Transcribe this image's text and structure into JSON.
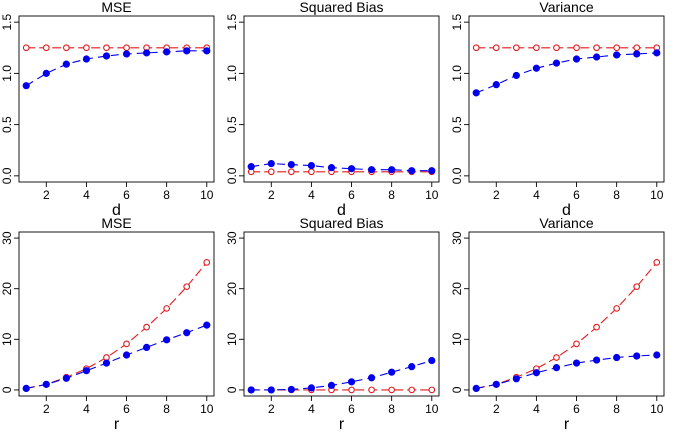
{
  "chart_data": [
    {
      "type": "line",
      "title": "MSE",
      "xlabel": "d",
      "ylabel": "",
      "xlim": [
        1,
        10
      ],
      "ylim": [
        0,
        1.5
      ],
      "xticks": [
        "2",
        "4",
        "6",
        "8",
        "10"
      ],
      "yticks": [
        "0.0",
        "0.5",
        "1.0",
        "1.5"
      ],
      "grid": false,
      "x": [
        1,
        2,
        3,
        4,
        5,
        6,
        7,
        8,
        9,
        10
      ],
      "series": [
        {
          "color": "#e41a1c",
          "style": "open-circle",
          "values": [
            1.25,
            1.25,
            1.25,
            1.25,
            1.25,
            1.25,
            1.25,
            1.25,
            1.25,
            1.25
          ]
        },
        {
          "color": "#0000ee",
          "style": "filled-circle",
          "values": [
            0.88,
            1.0,
            1.09,
            1.14,
            1.17,
            1.19,
            1.2,
            1.21,
            1.22,
            1.22
          ]
        }
      ]
    },
    {
      "type": "line",
      "title": "Squared Bias",
      "xlabel": "d",
      "ylabel": "",
      "xlim": [
        1,
        10
      ],
      "ylim": [
        0,
        1.5
      ],
      "xticks": [
        "2",
        "4",
        "6",
        "8",
        "10"
      ],
      "yticks": [
        "0.0",
        "0.5",
        "1.0",
        "1.5"
      ],
      "grid": false,
      "x": [
        1,
        2,
        3,
        4,
        5,
        6,
        7,
        8,
        9,
        10
      ],
      "series": [
        {
          "color": "#e41a1c",
          "style": "open-circle",
          "values": [
            0.04,
            0.04,
            0.04,
            0.04,
            0.04,
            0.04,
            0.04,
            0.04,
            0.04,
            0.04
          ]
        },
        {
          "color": "#0000ee",
          "style": "filled-circle",
          "values": [
            0.09,
            0.12,
            0.11,
            0.1,
            0.08,
            0.07,
            0.06,
            0.06,
            0.05,
            0.05
          ]
        }
      ]
    },
    {
      "type": "line",
      "title": "Variance",
      "xlabel": "d",
      "ylabel": "",
      "xlim": [
        1,
        10
      ],
      "ylim": [
        0,
        1.5
      ],
      "xticks": [
        "2",
        "4",
        "6",
        "8",
        "10"
      ],
      "yticks": [
        "0.0",
        "0.5",
        "1.0",
        "1.5"
      ],
      "grid": false,
      "x": [
        1,
        2,
        3,
        4,
        5,
        6,
        7,
        8,
        9,
        10
      ],
      "series": [
        {
          "color": "#e41a1c",
          "style": "open-circle",
          "values": [
            1.25,
            1.25,
            1.25,
            1.25,
            1.25,
            1.25,
            1.25,
            1.25,
            1.25,
            1.25
          ]
        },
        {
          "color": "#0000ee",
          "style": "filled-circle",
          "values": [
            0.81,
            0.89,
            0.98,
            1.05,
            1.1,
            1.14,
            1.16,
            1.18,
            1.19,
            1.2
          ]
        }
      ]
    },
    {
      "type": "line",
      "title": "MSE",
      "xlabel": "r",
      "ylabel": "",
      "xlim": [
        1,
        10
      ],
      "ylim": [
        0,
        30
      ],
      "xticks": [
        "2",
        "4",
        "6",
        "8",
        "10"
      ],
      "yticks": [
        "0",
        "10",
        "20",
        "30"
      ],
      "grid": false,
      "x": [
        1,
        2,
        3,
        4,
        5,
        6,
        7,
        8,
        9,
        10
      ],
      "series": [
        {
          "color": "#e41a1c",
          "style": "open-circle",
          "values": [
            0.3,
            1.1,
            2.5,
            4.2,
            6.4,
            9.1,
            12.4,
            16.1,
            20.4,
            25.2
          ]
        },
        {
          "color": "#0000ee",
          "style": "filled-circle",
          "values": [
            0.3,
            1.1,
            2.3,
            3.8,
            5.3,
            6.9,
            8.4,
            9.9,
            11.3,
            12.8
          ]
        }
      ]
    },
    {
      "type": "line",
      "title": "Squared Bias",
      "xlabel": "r",
      "ylabel": "",
      "xlim": [
        1,
        10
      ],
      "ylim": [
        0,
        30
      ],
      "xticks": [
        "2",
        "4",
        "6",
        "8",
        "10"
      ],
      "yticks": [
        "0",
        "10",
        "20",
        "30"
      ],
      "grid": false,
      "x": [
        1,
        2,
        3,
        4,
        5,
        6,
        7,
        8,
        9,
        10
      ],
      "series": [
        {
          "color": "#e41a1c",
          "style": "open-circle",
          "values": [
            0,
            0,
            0,
            0,
            0,
            0,
            0,
            0,
            0,
            0
          ]
        },
        {
          "color": "#0000ee",
          "style": "filled-circle",
          "values": [
            0,
            0,
            0.1,
            0.4,
            0.9,
            1.6,
            2.4,
            3.5,
            4.6,
            5.8
          ]
        }
      ]
    },
    {
      "type": "line",
      "title": "Variance",
      "xlabel": "r",
      "ylabel": "",
      "xlim": [
        1,
        10
      ],
      "ylim": [
        0,
        30
      ],
      "xticks": [
        "2",
        "4",
        "6",
        "8",
        "10"
      ],
      "yticks": [
        "0",
        "10",
        "20",
        "30"
      ],
      "grid": false,
      "x": [
        1,
        2,
        3,
        4,
        5,
        6,
        7,
        8,
        9,
        10
      ],
      "series": [
        {
          "color": "#e41a1c",
          "style": "open-circle",
          "values": [
            0.3,
            1.1,
            2.5,
            4.2,
            6.4,
            9.1,
            12.4,
            16.1,
            20.4,
            25.2
          ]
        },
        {
          "color": "#0000ee",
          "style": "filled-circle",
          "values": [
            0.3,
            1.1,
            2.2,
            3.4,
            4.4,
            5.3,
            5.9,
            6.4,
            6.7,
            6.9
          ]
        }
      ]
    }
  ]
}
